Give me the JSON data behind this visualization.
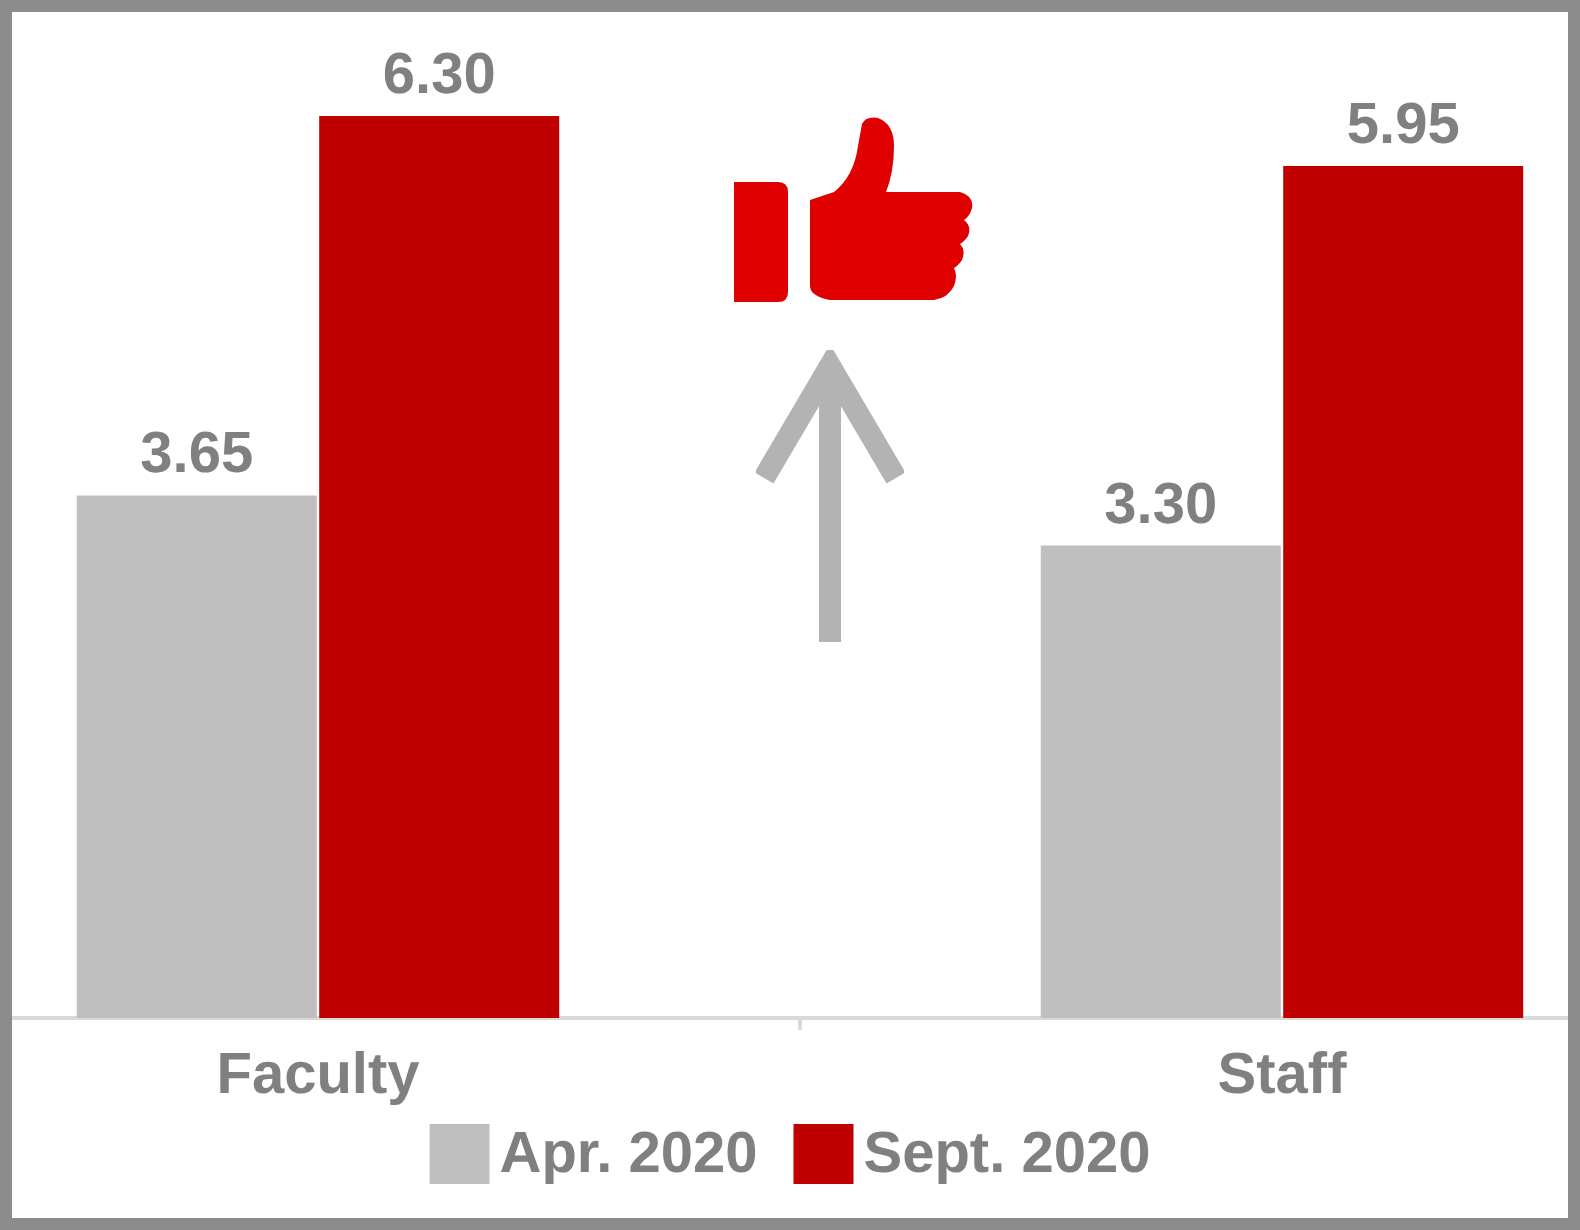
{
  "chart_data": {
    "type": "bar",
    "categories": [
      "Faculty",
      "Staff"
    ],
    "series": [
      {
        "name": "Apr. 2020",
        "color": "#bfbfbf",
        "values": [
          3.65,
          3.3
        ],
        "value_labels": [
          "3.65",
          "3.30"
        ]
      },
      {
        "name": "Sept. 2020",
        "color": "#c00000",
        "values": [
          6.3,
          5.95
        ],
        "value_labels": [
          "6.30",
          "5.95"
        ]
      }
    ],
    "legend": "bottom"
  }
}
